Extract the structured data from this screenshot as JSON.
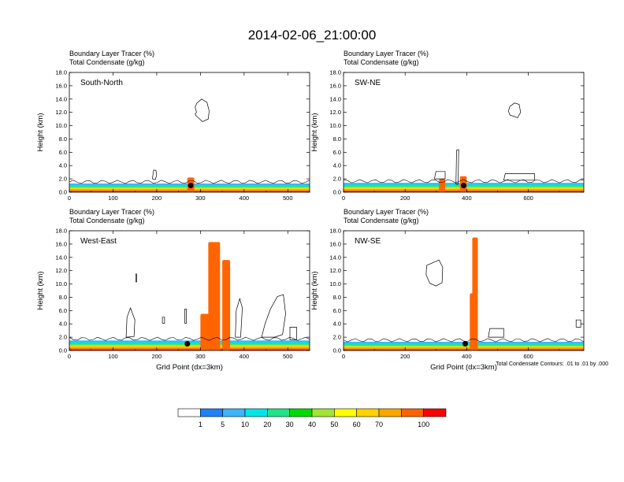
{
  "title": "2014-02-06_21:00:00",
  "footnote": "Total Condensate Contours: .01 to .01 by .000",
  "chart_data": [
    {
      "type": "heatmap",
      "name": "South-North",
      "subtitle1": "Boundary Layer Tracer   (%)",
      "subtitle2": "Total Condensate   (g/kg)",
      "ylabel": "Height (km)",
      "xlabel": "",
      "xlim": [
        0,
        550
      ],
      "ylim": [
        0,
        18
      ],
      "xticks": [
        "0",
        "100",
        "200",
        "300",
        "400",
        "500"
      ],
      "yticks": [
        "0.0",
        "2.0",
        "4.0",
        "6.0",
        "8.0",
        "10.0",
        "12.0",
        "14.0",
        "16.0",
        "18.0"
      ],
      "pbl_top_km": 1.3,
      "marker": {
        "x": 278,
        "y": 1.0
      },
      "cells": [
        {
          "x0": 270,
          "x1": 286,
          "top_km": 2.2
        }
      ],
      "contours": [
        {
          "x": [
            290,
            305,
            318,
            320,
            315,
            303,
            292,
            288,
            291,
            288,
            290
          ],
          "y": [
            11.5,
            10.6,
            11.0,
            12.2,
            13.5,
            14.0,
            13.4,
            12.8,
            12.0,
            11.8,
            11.5
          ]
        },
        {
          "x": [
            190,
            197,
            200,
            198,
            193,
            190
          ],
          "y": [
            2.0,
            1.9,
            2.6,
            3.3,
            3.3,
            2.0
          ]
        }
      ]
    },
    {
      "type": "heatmap",
      "name": "SW-NE",
      "subtitle1": "Boundary Layer Tracer   (%)",
      "subtitle2": "Total Condensate   (g/kg)",
      "ylabel": "Height (km)",
      "xlabel": "",
      "xlim": [
        0,
        780
      ],
      "ylim": [
        0,
        18
      ],
      "xticks": [
        "0",
        "200",
        "400",
        "600"
      ],
      "yticks": [
        "0.0",
        "2.0",
        "4.0",
        "6.0",
        "8.0",
        "10.0",
        "12.0",
        "14.0",
        "16.0",
        "18.0"
      ],
      "pbl_top_km": 1.4,
      "marker": {
        "x": 390,
        "y": 1.0
      },
      "cells": [
        {
          "x0": 378,
          "x1": 400,
          "top_km": 2.4
        },
        {
          "x0": 310,
          "x1": 330,
          "top_km": 2.0
        }
      ],
      "contours": [
        {
          "x": [
            540,
            565,
            575,
            570,
            555,
            540,
            535,
            540
          ],
          "y": [
            11.6,
            11.2,
            12.0,
            13.2,
            13.4,
            12.9,
            12.2,
            11.6
          ]
        },
        {
          "x": [
            365,
            372,
            374,
            367,
            365
          ],
          "y": [
            1.2,
            1.2,
            6.4,
            6.3,
            1.2
          ]
        },
        {
          "x": [
            520,
            620,
            620,
            525,
            520
          ],
          "y": [
            1.8,
            1.8,
            2.8,
            2.8,
            1.8
          ]
        },
        {
          "x": [
            295,
            330,
            330,
            300,
            295
          ],
          "y": [
            2.0,
            2.0,
            3.1,
            3.1,
            2.0
          ]
        }
      ]
    },
    {
      "type": "heatmap",
      "name": "West-East",
      "subtitle1": "Boundary Layer Tracer   (%)",
      "subtitle2": "Total Condensate   (g/kg)",
      "ylabel": "Height (km)",
      "xlabel": "Grid Point (dx=3km)",
      "xlim": [
        0,
        550
      ],
      "ylim": [
        0,
        18
      ],
      "xticks": [
        "0",
        "100",
        "200",
        "300",
        "400",
        "500"
      ],
      "yticks": [
        "0.0",
        "2.0",
        "4.0",
        "6.0",
        "8.0",
        "10.0",
        "12.0",
        "14.0",
        "16.0",
        "18.0"
      ],
      "pbl_top_km": 1.5,
      "marker": {
        "x": 270,
        "y": 1.0
      },
      "cells": [
        {
          "x0": 318,
          "x1": 345,
          "top_km": 16.3
        },
        {
          "x0": 350,
          "x1": 368,
          "top_km": 13.6
        },
        {
          "x0": 300,
          "x1": 320,
          "top_km": 5.5
        }
      ],
      "contours": [
        {
          "x": [
            130,
            148,
            150,
            140,
            132,
            130
          ],
          "y": [
            2.0,
            2.1,
            4.6,
            6.4,
            5.0,
            2.0
          ]
        },
        {
          "x": [
            380,
            392,
            396,
            390,
            382,
            380
          ],
          "y": [
            2.0,
            2.0,
            6.4,
            7.8,
            6.0,
            2.0
          ]
        },
        {
          "x": [
            440,
            470,
            488,
            495,
            490,
            476,
            460,
            448,
            440
          ],
          "y": [
            2.0,
            2.0,
            2.4,
            5.5,
            8.4,
            8.1,
            6.2,
            4.0,
            2.0
          ]
        },
        {
          "x": [
            505,
            520,
            520,
            505,
            505
          ],
          "y": [
            1.6,
            1.6,
            3.5,
            3.5,
            1.6
          ]
        },
        {
          "x": [
            213,
            218,
            218,
            213,
            213
          ],
          "y": [
            4.1,
            4.1,
            5.0,
            5.0,
            4.1
          ]
        },
        {
          "x": [
            264,
            268,
            268,
            264,
            264
          ],
          "y": [
            4.1,
            4.1,
            6.2,
            6.2,
            4.1
          ]
        },
        {
          "x": [
            152,
            154,
            154,
            152,
            152
          ],
          "y": [
            10.3,
            10.3,
            11.5,
            11.5,
            10.3
          ]
        }
      ]
    },
    {
      "type": "heatmap",
      "name": "NW-SE",
      "subtitle1": "Boundary Layer Tracer   (%)",
      "subtitle2": "Total Condensate   (g/kg)",
      "ylabel": "Height (km)",
      "xlabel": "Grid Point (dx=3km)",
      "xlim": [
        0,
        780
      ],
      "ylim": [
        0,
        18
      ],
      "xticks": [
        "0",
        "200",
        "400",
        "600"
      ],
      "yticks": [
        "0.0",
        "2.0",
        "4.0",
        "6.0",
        "8.0",
        "10.0",
        "12.0",
        "14.0",
        "16.0",
        "18.0"
      ],
      "pbl_top_km": 1.3,
      "marker": {
        "x": 395,
        "y": 1.0
      },
      "cells": [
        {
          "x0": 418,
          "x1": 436,
          "top_km": 17.0
        },
        {
          "x0": 410,
          "x1": 430,
          "top_km": 8.6
        }
      ],
      "contours": [
        {
          "x": [
            270,
            310,
            322,
            320,
            300,
            280,
            268,
            270
          ],
          "y": [
            12.8,
            13.6,
            12.5,
            10.2,
            9.7,
            10.1,
            11.4,
            12.8
          ]
        },
        {
          "x": [
            470,
            520,
            520,
            475,
            470
          ],
          "y": [
            2.0,
            2.0,
            3.3,
            3.3,
            2.0
          ]
        },
        {
          "x": [
            755,
            770,
            770,
            755,
            755
          ],
          "y": [
            3.5,
            3.5,
            4.6,
            4.6,
            3.5
          ]
        }
      ]
    }
  ],
  "colorbar": {
    "labels": [
      "1",
      "5",
      "10",
      "20",
      "30",
      "40",
      "50",
      "60",
      "70",
      "100"
    ],
    "colors": [
      "#ffffff",
      "#1e82ff",
      "#3cb4ff",
      "#00e6e6",
      "#1ee688",
      "#00dc00",
      "#a0e632",
      "#ffff00",
      "#ffd200",
      "#ffa500",
      "#ff6400",
      "#ff0000"
    ]
  }
}
